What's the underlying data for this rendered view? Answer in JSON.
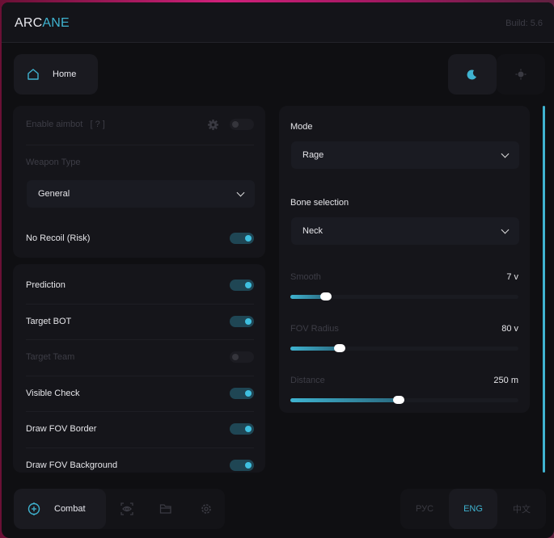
{
  "header": {
    "logo_part1": "ARC",
    "logo_part2": "ANE",
    "build": "Build: 5.6"
  },
  "top_nav": {
    "home_label": "Home",
    "theme_dark_icon": "moon-icon",
    "theme_light_icon": "sun-icon"
  },
  "aimbot_card": {
    "enable_label": "Enable aimbot",
    "help": "[ ? ]",
    "enabled": false,
    "weapon_type_label": "Weapon Type",
    "weapon_type_value": "General",
    "no_recoil_label": "No Recoil (Risk)",
    "no_recoil": true
  },
  "options": [
    {
      "label": "Prediction",
      "on": true,
      "disabled": false
    },
    {
      "label": "Target BOT",
      "on": true,
      "disabled": false
    },
    {
      "label": "Target Team",
      "on": false,
      "disabled": true
    },
    {
      "label": "Visible Check",
      "on": true,
      "disabled": false
    },
    {
      "label": "Draw FOV Border",
      "on": true,
      "disabled": false
    },
    {
      "label": "Draw FOV Background",
      "on": true,
      "disabled": false
    }
  ],
  "right_card": {
    "mode_label": "Mode",
    "mode_value": "Rage",
    "bone_label": "Bone selection",
    "bone_value": "Neck",
    "sliders": [
      {
        "label": "Smooth",
        "value": "7 v",
        "fraction": 0.16
      },
      {
        "label": "FOV Radius",
        "value": "80 v",
        "fraction": 0.22
      },
      {
        "label": "Distance",
        "value": "250 m",
        "fraction": 0.48
      }
    ]
  },
  "bottom_nav": {
    "combat_label": "Combat",
    "tabs": [
      "combat",
      "visuals",
      "configs",
      "settings"
    ]
  },
  "languages": [
    {
      "label": "РУС",
      "active": false
    },
    {
      "label": "ENG",
      "active": true
    },
    {
      "label": "中文",
      "active": false
    }
  ],
  "colors": {
    "accent": "#3fb3d0",
    "bg": "#0f0f12",
    "card": "#15151a"
  }
}
